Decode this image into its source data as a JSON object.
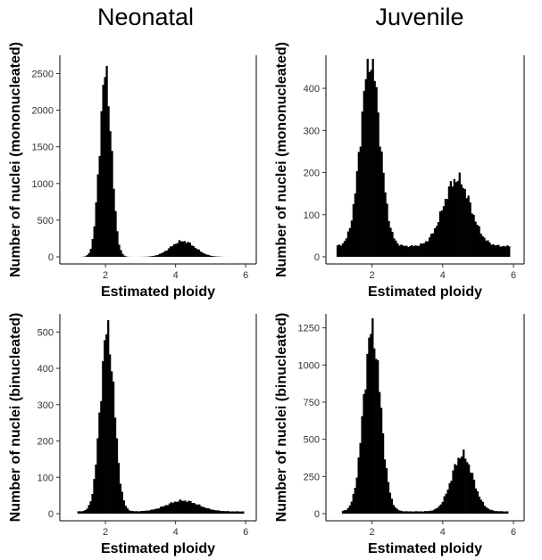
{
  "column_titles": [
    "Neonatal",
    "Juvenile"
  ],
  "chart_data": [
    {
      "type": "bar",
      "panel": "neonatal-mononucleated",
      "title": "Neonatal",
      "xlabel": "Estimated ploidy",
      "ylabel": "Number of nuclei (mononucleated)",
      "xlim": [
        0.8,
        6.2
      ],
      "ylim": [
        0,
        2700
      ],
      "xticks": [
        2,
        4,
        6
      ],
      "yticks": [
        0,
        500,
        1000,
        1500,
        2000,
        2500
      ],
      "peaks": [
        {
          "center": 2.0,
          "sd": 0.17,
          "height": 2480
        },
        {
          "center": 4.2,
          "sd": 0.35,
          "height": 215
        }
      ],
      "bin_range": [
        1.15,
        5.95
      ],
      "bin_count": 95
    },
    {
      "type": "bar",
      "panel": "juvenile-mononucleated",
      "title": "Juvenile",
      "xlabel": "Estimated ploidy",
      "ylabel": "Number of nuclei (mononucleated)",
      "xlim": [
        0.8,
        6.2
      ],
      "ylim": [
        0,
        470
      ],
      "xticks": [
        2,
        4,
        6
      ],
      "yticks": [
        0,
        100,
        200,
        300,
        400
      ],
      "peaks": [
        {
          "center": 1.95,
          "sd": 0.27,
          "height": 445
        },
        {
          "center": 4.4,
          "sd": 0.38,
          "height": 160
        }
      ],
      "baseline": 25,
      "bin_range": [
        1.0,
        5.9
      ],
      "bin_count": 98
    },
    {
      "type": "bar",
      "panel": "neonatal-binucleated",
      "title": "",
      "xlabel": "Estimated ploidy",
      "ylabel": "Number of nuclei (binucleated)",
      "xlim": [
        0.8,
        6.2
      ],
      "ylim": [
        0,
        540
      ],
      "xticks": [
        2,
        4,
        6
      ],
      "yticks": [
        0,
        100,
        200,
        300,
        400,
        500
      ],
      "peaks": [
        {
          "center": 2.05,
          "sd": 0.2,
          "height": 495
        },
        {
          "center": 4.2,
          "sd": 0.45,
          "height": 30
        }
      ],
      "baseline": 6,
      "bin_range": [
        1.2,
        5.95
      ],
      "bin_count": 95
    },
    {
      "type": "bar",
      "panel": "juvenile-binucleated",
      "title": "",
      "xlabel": "Estimated ploidy",
      "ylabel": "Number of nuclei (binucleated)",
      "xlim": [
        0.8,
        6.2
      ],
      "ylim": [
        0,
        1320
      ],
      "xticks": [
        2,
        4,
        6
      ],
      "yticks": [
        0,
        250,
        500,
        750,
        1000,
        1250
      ],
      "peaks": [
        {
          "center": 2.0,
          "sd": 0.24,
          "height": 1215
        },
        {
          "center": 4.55,
          "sd": 0.3,
          "height": 380
        }
      ],
      "baseline": 15,
      "bin_range": [
        1.15,
        5.85
      ],
      "bin_count": 95
    }
  ]
}
